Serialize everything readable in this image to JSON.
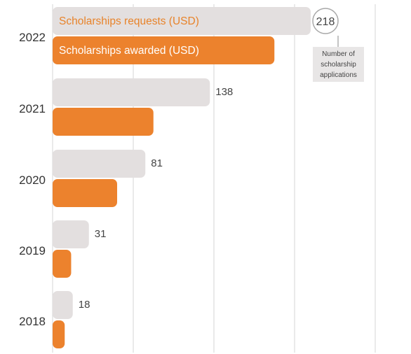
{
  "chart_data": {
    "type": "bar",
    "orientation": "horizontal",
    "categories": [
      "2022",
      "2021",
      "2020",
      "2019",
      "2018"
    ],
    "series": [
      {
        "name": "Scholarships requests (USD)",
        "color": "#e3dfdf",
        "label_color": "#e8832a",
        "values": [
          32000,
          19500,
          11500,
          4500,
          2500
        ]
      },
      {
        "name": "Scholarships awarded (USD)",
        "color": "#ec822d",
        "label_color": "#ffffff",
        "values": [
          27500,
          12500,
          8000,
          2300,
          1500
        ]
      }
    ],
    "applications": {
      "values": [
        218,
        138,
        81,
        31,
        18
      ],
      "callout": [
        "Number of",
        "scholarship",
        "applications"
      ]
    },
    "xlim": [
      0,
      40000
    ],
    "grid": true,
    "legend": "inside-bars"
  }
}
